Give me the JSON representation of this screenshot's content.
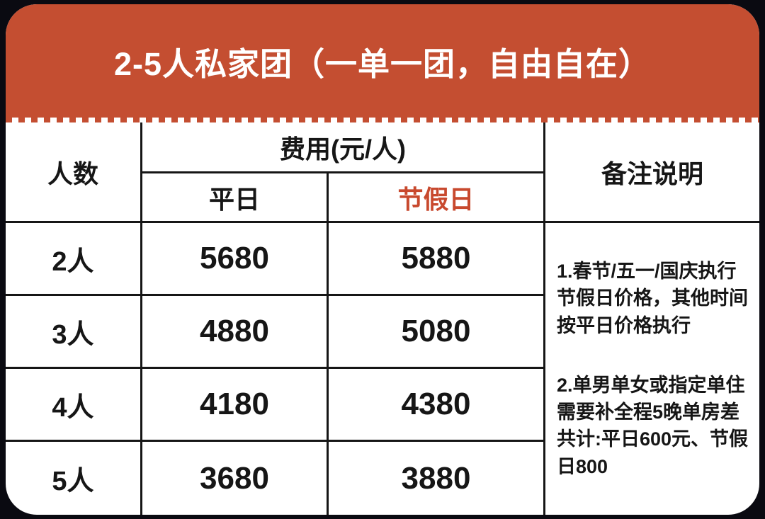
{
  "banner": {
    "title": "2-5人私家团（一单一团，自由自在）"
  },
  "table": {
    "headers": {
      "people": "人数",
      "cost": "费用(元/人)",
      "weekday": "平日",
      "holiday": "节假日",
      "notes": "备注说明"
    },
    "rows": [
      {
        "people": "2人",
        "weekday": "5680",
        "holiday": "5880"
      },
      {
        "people": "3人",
        "weekday": "4880",
        "holiday": "5080"
      },
      {
        "people": "4人",
        "weekday": "4180",
        "holiday": "4380"
      },
      {
        "people": "5人",
        "weekday": "3680",
        "holiday": "3880"
      }
    ],
    "notes": [
      "1.春节/五一/国庆执行\n节假日价格，其他时间\n按平日价格执行",
      "2.单男单女或指定单住\n需要补全程5晚单房差\n共计:平日600元、节假\n日800"
    ]
  },
  "colors": {
    "banner_red": "#c44e31",
    "holiday_red": "#c8492e",
    "grid_line": "#161616",
    "background_dark": "#0a0a11"
  }
}
